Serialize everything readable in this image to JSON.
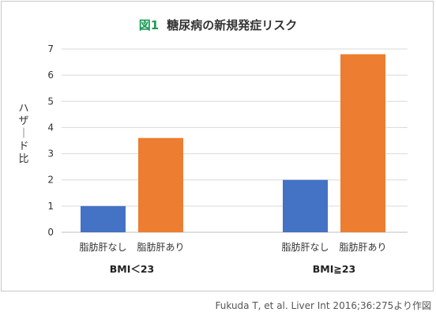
{
  "chart_data": {
    "type": "bar",
    "title_prefix": "図1",
    "title": "糖尿病の新規発症リスク",
    "ylabel": "ハザード比",
    "ylim": [
      0,
      7
    ],
    "yticks": [
      0,
      1,
      2,
      3,
      4,
      5,
      6,
      7
    ],
    "grid": true,
    "groups": [
      {
        "name": "BMI＜23",
        "bars": [
          {
            "category": "脂肪肝なし",
            "value": 1.0,
            "color": "#4472c4"
          },
          {
            "category": "脂肪肝あり",
            "value": 3.6,
            "color": "#ed7d31"
          }
        ]
      },
      {
        "name": "BMI≧23",
        "bars": [
          {
            "category": "脂肪肝なし",
            "value": 2.0,
            "color": "#4472c4"
          },
          {
            "category": "脂肪肝あり",
            "value": 6.8,
            "color": "#ed7d31"
          }
        ]
      }
    ]
  },
  "source": "Fukuda T, et al. Liver Int 2016;36:275より作図"
}
